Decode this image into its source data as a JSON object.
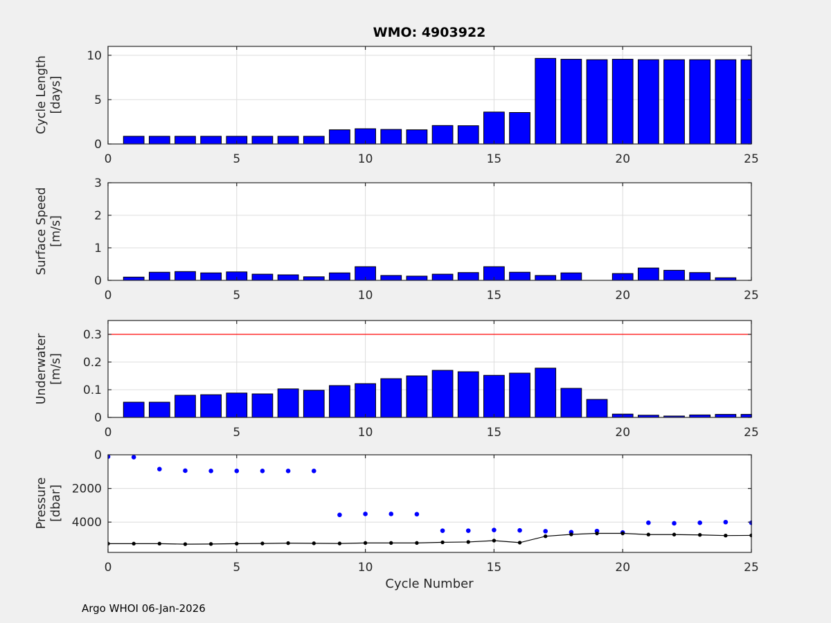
{
  "title": "WMO: 4903922",
  "xlabel": "Cycle Number",
  "footer": "Argo WHOI 06-Jan-2026",
  "colors": {
    "figure_bg": "#f0f0f0",
    "axes_bg": "#ffffff",
    "grid": "#dcdcdc",
    "frame": "#262626",
    "text": "#262626",
    "bar_fill": "#0000ff",
    "bar_edge": "#000000",
    "ref_line": "#ff0000",
    "park_dots": "#0000ff",
    "profile_line": "#000000"
  },
  "chart_data": [
    {
      "name": "cycle-length",
      "type": "bar",
      "ylabel": [
        "Cycle Length",
        "[days]"
      ],
      "xlim": [
        0,
        25
      ],
      "xticks": [
        0,
        5,
        10,
        15,
        20,
        25
      ],
      "xtick_labels": [
        "0",
        "5",
        "10",
        "15",
        "20",
        "25"
      ],
      "ylim": [
        0,
        11
      ],
      "yticks": [
        0,
        5,
        10
      ],
      "ytick_labels": [
        "0",
        "5",
        "10"
      ],
      "grid": true,
      "x": [
        1,
        2,
        3,
        4,
        5,
        6,
        7,
        8,
        9,
        10,
        11,
        12,
        13,
        14,
        15,
        16,
        17,
        18,
        19,
        20,
        21,
        22,
        23,
        24,
        25
      ],
      "values": [
        0.87,
        0.87,
        0.87,
        0.87,
        0.87,
        0.87,
        0.87,
        0.87,
        1.6,
        1.72,
        1.64,
        1.6,
        2.08,
        2.06,
        3.6,
        3.55,
        9.65,
        9.55,
        9.5,
        9.55,
        9.5,
        9.5,
        9.5,
        9.5,
        9.5
      ]
    },
    {
      "name": "surface-speed",
      "type": "bar",
      "ylabel": [
        "Surface Speed",
        "[m/s]"
      ],
      "xlim": [
        0,
        25
      ],
      "xticks": [
        0,
        5,
        10,
        15,
        20,
        25
      ],
      "xtick_labels": [
        "0",
        "5",
        "10",
        "15",
        "20",
        "25"
      ],
      "ylim": [
        0,
        3
      ],
      "yticks": [
        0,
        1,
        2,
        3
      ],
      "ytick_labels": [
        "0",
        "1",
        "2",
        "3"
      ],
      "grid": true,
      "x": [
        1,
        2,
        3,
        4,
        5,
        6,
        7,
        8,
        9,
        10,
        11,
        12,
        13,
        14,
        15,
        16,
        17,
        18,
        19,
        20,
        21,
        22,
        23,
        24,
        25
      ],
      "values": [
        0.1,
        0.25,
        0.27,
        0.23,
        0.26,
        0.19,
        0.17,
        0.11,
        0.23,
        0.42,
        0.15,
        0.13,
        0.19,
        0.24,
        0.42,
        0.25,
        0.15,
        0.23,
        0,
        0.21,
        0.38,
        0.31,
        0.24,
        0.08,
        0
      ]
    },
    {
      "name": "underwater-speed",
      "type": "bar",
      "ylabel": [
        "Underwater",
        "[m/s]"
      ],
      "xlim": [
        0,
        25
      ],
      "xticks": [
        0,
        5,
        10,
        15,
        20,
        25
      ],
      "xtick_labels": [
        "0",
        "5",
        "10",
        "15",
        "20",
        "25"
      ],
      "ylim": [
        0,
        0.35
      ],
      "yticks": [
        0,
        0.1,
        0.2,
        0.3
      ],
      "ytick_labels": [
        "0",
        "0.1",
        "0.2",
        "0.3"
      ],
      "grid": true,
      "ref_line": {
        "y": 0.3
      },
      "x": [
        1,
        2,
        3,
        4,
        5,
        6,
        7,
        8,
        9,
        10,
        11,
        12,
        13,
        14,
        15,
        16,
        17,
        18,
        19,
        20,
        21,
        22,
        23,
        24,
        25
      ],
      "values": [
        0.055,
        0.055,
        0.08,
        0.082,
        0.088,
        0.085,
        0.103,
        0.098,
        0.115,
        0.122,
        0.14,
        0.15,
        0.17,
        0.165,
        0.152,
        0.16,
        0.178,
        0.105,
        0.065,
        0.012,
        0.008,
        0.005,
        0.009,
        0.011,
        0.011
      ]
    },
    {
      "name": "pressure",
      "type": "scatter",
      "ylabel": [
        "Pressure",
        "[dbar]"
      ],
      "xlim": [
        0,
        25
      ],
      "xticks": [
        0,
        5,
        10,
        15,
        20,
        25
      ],
      "xtick_labels": [
        "0",
        "5",
        "10",
        "15",
        "20",
        "25"
      ],
      "ylim": [
        0,
        5800
      ],
      "reversed": true,
      "yticks": [
        0,
        2000,
        4000
      ],
      "ytick_labels": [
        "0",
        "2000",
        "4000"
      ],
      "grid": true,
      "series": [
        {
          "name": "park-pressure",
          "marker": "dot",
          "line": false,
          "x": [
            0,
            1,
            2,
            3,
            4,
            5,
            6,
            7,
            8,
            9,
            10,
            11,
            12,
            13,
            14,
            15,
            16,
            17,
            18,
            19,
            20,
            21,
            22,
            23,
            24,
            25
          ],
          "values": [
            110,
            140,
            850,
            945,
            960,
            960,
            960,
            960,
            960,
            3570,
            3515,
            3515,
            3530,
            4510,
            4510,
            4470,
            4490,
            4540,
            4600,
            4530,
            4620,
            4040,
            4070,
            4040,
            4000,
            4040
          ]
        },
        {
          "name": "profile-pressure",
          "marker": "dot",
          "line": true,
          "x": [
            0,
            1,
            2,
            3,
            4,
            5,
            6,
            7,
            8,
            9,
            10,
            11,
            12,
            13,
            14,
            15,
            16,
            17,
            18,
            19,
            20,
            21,
            22,
            23,
            24,
            25
          ],
          "values": [
            5280,
            5280,
            5280,
            5310,
            5300,
            5280,
            5270,
            5250,
            5260,
            5270,
            5240,
            5240,
            5240,
            5200,
            5180,
            5100,
            5220,
            4840,
            4730,
            4670,
            4670,
            4740,
            4740,
            4760,
            4800,
            4790
          ]
        }
      ]
    }
  ]
}
